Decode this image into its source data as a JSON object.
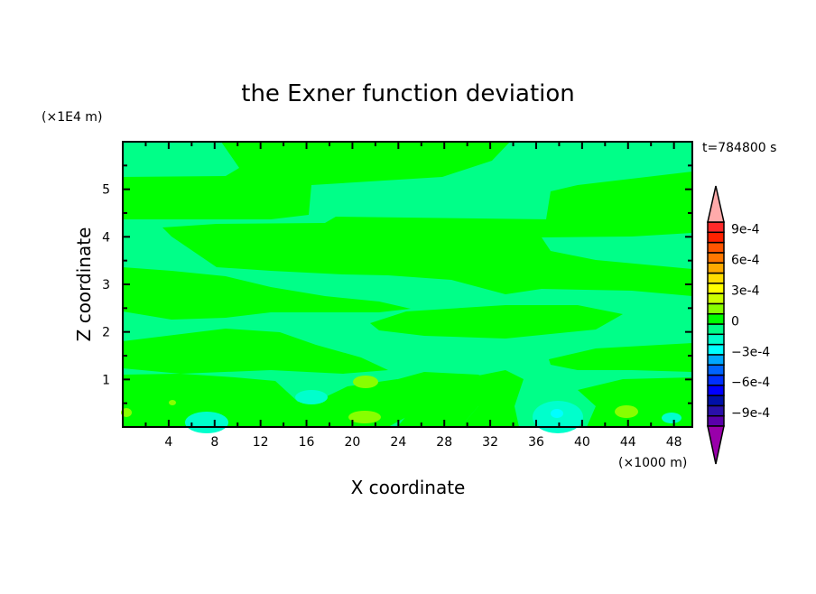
{
  "chart_data": {
    "type": "heatmap",
    "subtype": "filled-contour",
    "title": "the Exner function deviation",
    "xlabel": "X coordinate",
    "ylabel": "Z coordinate",
    "x_unit": "(×1000 m)",
    "y_unit": "(×1E4 m)",
    "time_label": "t=784800 s",
    "xlim": [
      0,
      49.6
    ],
    "ylim": [
      0,
      6
    ],
    "x_ticks": [
      4,
      8,
      12,
      16,
      20,
      24,
      28,
      32,
      36,
      40,
      44,
      48
    ],
    "y_ticks": [
      1,
      2,
      3,
      4,
      5
    ],
    "grid": false,
    "colorbar": {
      "levels_min": -0.001,
      "levels_max": 0.001,
      "step": 0.0001,
      "tick_labels": [
        "9e-4",
        "6e-4",
        "3e-4",
        "0",
        "−3e-4",
        "−6e-4",
        "−9e-4"
      ],
      "tick_values": [
        0.0009,
        0.0006,
        0.0003,
        0,
        -0.0003,
        -0.0006,
        -0.0009
      ],
      "colors_bottom_to_top": [
        "#5a00aa",
        "#2a10aa",
        "#0010a8",
        "#0000ff",
        "#0030ff",
        "#0064ff",
        "#00a8ff",
        "#00ffff",
        "#00ffcc",
        "#00ff88",
        "#00ff00",
        "#88ff00",
        "#ccff00",
        "#ffff00",
        "#ffdd00",
        "#ffaa00",
        "#ff7700",
        "#ff5500",
        "#ff2200",
        "#ff2a2a"
      ],
      "under_color": "#9900aa",
      "over_color": "#ffaaaa"
    },
    "dominant_ranges": [
      "-1e-4 to 0 (#00ff88)",
      "0 to 1e-4 (#00ff00)"
    ],
    "local_extrema": [
      "+1e-4 to 2e-4 near x≈21, z≈0.9 and x≈21, z≈0.2 and x≈44, z≈0.3",
      "-2e-4 to -1e-4 near x≈16, z≈0.6; x≈7, z≈0.2; x≈38, z≈0.3 (core -3e-4 to -2e-4)"
    ]
  }
}
